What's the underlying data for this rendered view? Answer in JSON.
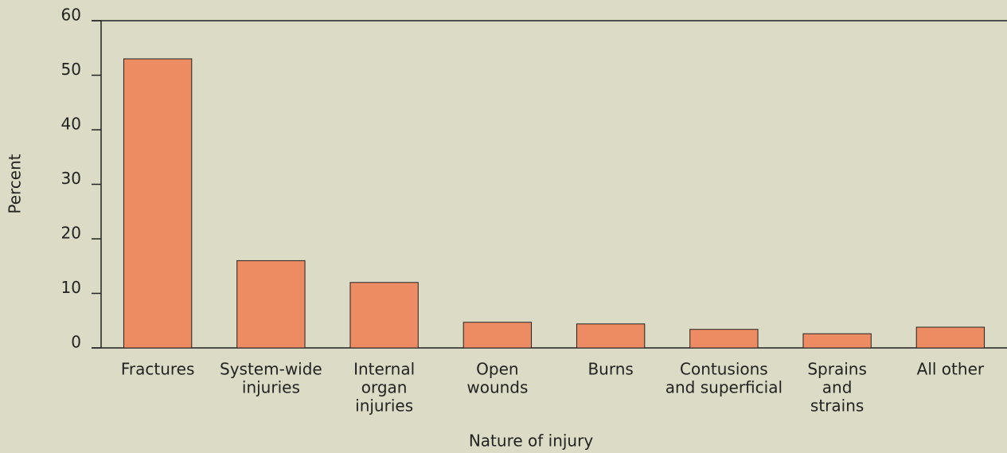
{
  "chart_data": {
    "type": "bar",
    "y_label": "Percent",
    "x_label": "Nature of injury",
    "categories": [
      [
        "Fractures"
      ],
      [
        "System-wide",
        "injuries"
      ],
      [
        "Internal",
        "organ",
        "injuries"
      ],
      [
        "Open",
        "wounds"
      ],
      [
        "Burns"
      ],
      [
        "Contusions",
        "and superficial"
      ],
      [
        "Sprains",
        "and",
        "strains"
      ],
      [
        "All other"
      ]
    ],
    "values": [
      53,
      16,
      12,
      4.7,
      4.4,
      3.4,
      2.6,
      3.8
    ],
    "color": "#ed8b62",
    "ylim": [
      0,
      60
    ],
    "yticks": [
      0,
      10,
      20,
      30,
      40,
      50,
      60
    ],
    "grid": false
  }
}
